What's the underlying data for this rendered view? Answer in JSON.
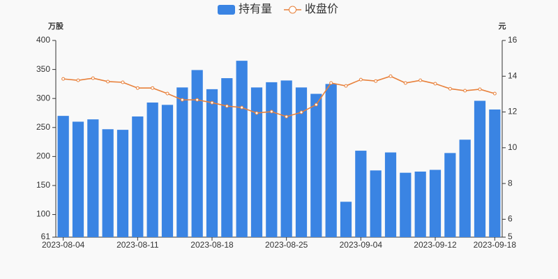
{
  "chart_data": {
    "type": "bar",
    "categories": [
      "2023-08-04",
      null,
      null,
      null,
      null,
      "2023-08-11",
      null,
      null,
      null,
      null,
      "2023-08-18",
      null,
      null,
      null,
      null,
      "2023-08-25",
      null,
      null,
      null,
      null,
      "2023-09-04",
      null,
      null,
      null,
      null,
      "2023-09-12",
      null,
      null,
      null,
      "2023-09-18"
    ],
    "series": [
      {
        "name": "持有量",
        "type": "bar",
        "color": "#3a84e3",
        "values": [
          270,
          260,
          264,
          247,
          246,
          269,
          293,
          289,
          319,
          349,
          316,
          335,
          365,
          319,
          328,
          331,
          319,
          308,
          325,
          122,
          210,
          176,
          207,
          172,
          174,
          177,
          206,
          229,
          296,
          281
        ]
      },
      {
        "name": "收盘价",
        "type": "line",
        "axis": "y2",
        "color": "#e8803a",
        "values": [
          13.85,
          13.77,
          13.89,
          13.7,
          13.66,
          13.34,
          13.34,
          13.03,
          12.68,
          12.68,
          12.52,
          12.33,
          12.25,
          11.94,
          12.02,
          11.74,
          11.98,
          12.41,
          13.62,
          13.46,
          13.81,
          13.73,
          14.0,
          13.62,
          13.77,
          13.58,
          13.3,
          13.19,
          13.27,
          13.03
        ]
      }
    ],
    "y_unit": "万股",
    "y2_unit": "元",
    "ylim": [
      61,
      400
    ],
    "yticks": [
      61,
      100,
      150,
      200,
      250,
      300,
      350,
      400
    ],
    "y2lim": [
      5,
      16
    ],
    "y2ticks": [
      5,
      6,
      8,
      10,
      12,
      14,
      16
    ],
    "legend": "top"
  }
}
